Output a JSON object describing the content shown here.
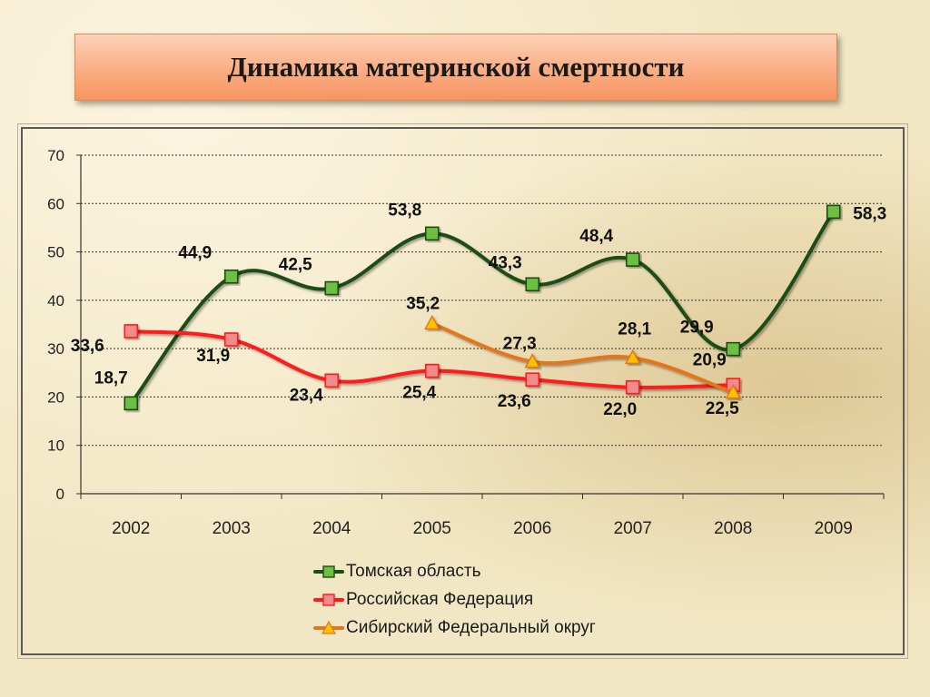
{
  "slide": {
    "title": "Динамика материнской смертности"
  },
  "chart_data": {
    "type": "line",
    "title": "",
    "xlabel": "",
    "ylabel": "",
    "categories": [
      "2002",
      "2003",
      "2004",
      "2005",
      "2006",
      "2007",
      "2008",
      "2009"
    ],
    "ylim": [
      0,
      70
    ],
    "yticks": [
      0,
      10,
      20,
      30,
      40,
      50,
      60,
      70
    ],
    "grid": "horizontal-dashed",
    "legend_position": "bottom",
    "series": [
      {
        "name": "Томская область",
        "color": "#1e4d14",
        "marker": "square",
        "marker_color": "#6cbf3f",
        "values": [
          18.7,
          44.9,
          42.5,
          53.8,
          43.3,
          48.4,
          29.9,
          58.3
        ],
        "labels": [
          "18,7",
          "44,9",
          "42,5",
          "53,8",
          "43,3",
          "48,4",
          "29,9",
          "58,3"
        ]
      },
      {
        "name": "Российская Федерация",
        "color": "#ff1a1a",
        "marker": "square",
        "marker_color": "#f28b8b",
        "values": [
          33.6,
          31.9,
          23.4,
          25.4,
          23.6,
          22.0,
          22.5,
          null
        ],
        "labels": [
          "33,6",
          "31,9",
          "23,4",
          "25,4",
          "23,6",
          "22,0",
          "22,5",
          ""
        ]
      },
      {
        "name": "Сибирский Федеральный округ",
        "color": "#e3761a",
        "marker": "triangle",
        "marker_color": "#ffc000",
        "values": [
          null,
          null,
          null,
          35.2,
          27.3,
          28.1,
          20.9,
          null
        ],
        "labels": [
          "",
          "",
          "",
          "35,2",
          "27,3",
          "28,1",
          "20,9",
          ""
        ]
      }
    ]
  }
}
